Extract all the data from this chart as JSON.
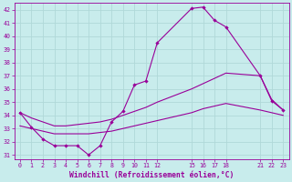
{
  "xlabel": "Windchill (Refroidissement éolien,°C)",
  "background_color": "#c8ecec",
  "grid_color": "#b0d8d8",
  "line_color": "#990099",
  "xlim": [
    -0.5,
    23.5
  ],
  "ylim": [
    30.7,
    42.5
  ],
  "yticks": [
    31,
    32,
    33,
    34,
    35,
    36,
    37,
    38,
    39,
    40,
    41,
    42
  ],
  "xticks": [
    0,
    1,
    2,
    3,
    4,
    5,
    6,
    7,
    8,
    9,
    10,
    11,
    12,
    15,
    16,
    17,
    18,
    21,
    22,
    23
  ],
  "series_main": {
    "x": [
      0,
      1,
      2,
      3,
      4,
      5,
      6,
      7,
      8,
      9,
      10,
      11,
      12,
      15,
      16,
      17,
      18,
      21,
      22,
      23
    ],
    "y": [
      34.2,
      33.1,
      32.2,
      31.7,
      31.7,
      31.7,
      31.0,
      31.7,
      33.5,
      34.3,
      36.3,
      36.6,
      39.5,
      42.1,
      42.2,
      41.2,
      40.7,
      37.0,
      35.1,
      34.4
    ]
  },
  "series_upper": {
    "x": [
      0,
      1,
      2,
      3,
      4,
      5,
      6,
      7,
      8,
      9,
      10,
      11,
      12,
      15,
      16,
      17,
      18,
      21,
      22,
      23
    ],
    "y": [
      34.2,
      33.8,
      33.5,
      33.2,
      33.2,
      33.3,
      33.4,
      33.5,
      33.7,
      34.0,
      34.3,
      34.6,
      35.0,
      36.0,
      36.4,
      36.8,
      37.2,
      37.0,
      35.2,
      34.4
    ]
  },
  "series_lower": {
    "x": [
      0,
      1,
      2,
      3,
      4,
      5,
      6,
      7,
      8,
      9,
      10,
      11,
      12,
      15,
      16,
      17,
      18,
      21,
      22,
      23
    ],
    "y": [
      33.2,
      33.0,
      32.8,
      32.6,
      32.6,
      32.6,
      32.6,
      32.7,
      32.8,
      33.0,
      33.2,
      33.4,
      33.6,
      34.2,
      34.5,
      34.7,
      34.9,
      34.4,
      34.2,
      34.0
    ]
  }
}
